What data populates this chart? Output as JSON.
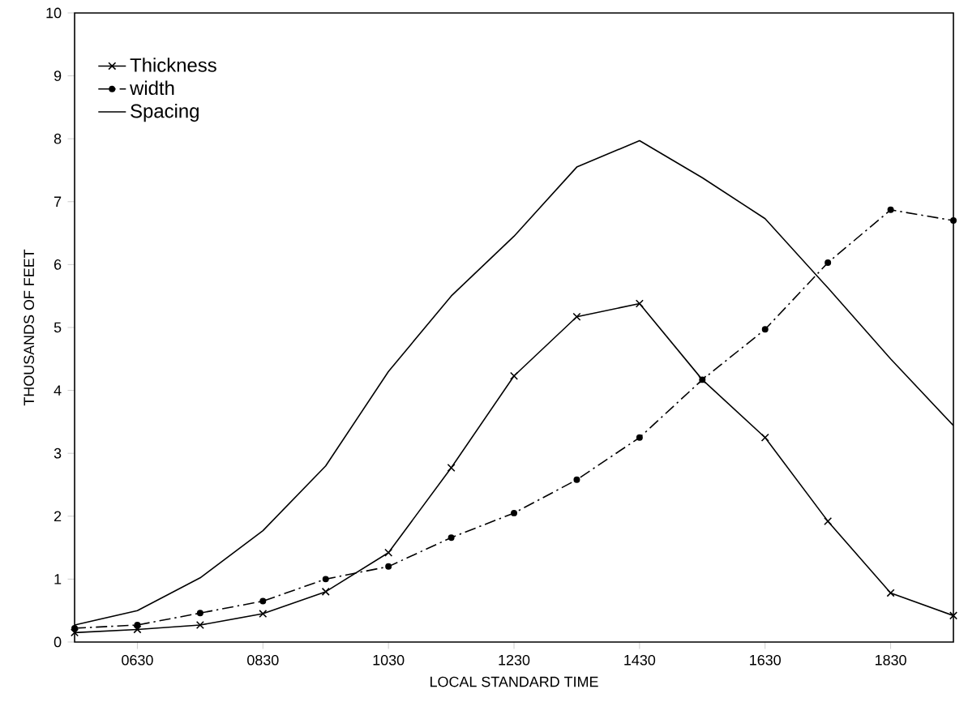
{
  "chart_data": {
    "type": "line",
    "xlabel": "LOCAL STANDARD TIME",
    "ylabel": "THOUSANDS OF FEET",
    "categories": [
      null,
      "0630",
      null,
      "0830",
      null,
      "1030",
      null,
      "1230",
      null,
      "1430",
      null,
      "1630",
      null,
      "1830",
      null
    ],
    "series": [
      {
        "name": "Thickness",
        "color": "#000000",
        "marker": "cross",
        "line_style": "solid",
        "values": [
          0.15,
          0.2,
          0.27,
          0.45,
          0.8,
          1.42,
          2.77,
          4.23,
          5.17,
          5.38,
          4.17,
          3.25,
          1.92,
          0.78,
          0.42
        ]
      },
      {
        "name": "width",
        "color": "#000000",
        "marker": "circle",
        "line_style": "dashdot",
        "values": [
          0.22,
          0.27,
          0.46,
          0.65,
          1.0,
          1.2,
          1.66,
          2.05,
          2.58,
          3.25,
          4.17,
          4.97,
          6.03,
          6.87,
          6.7
        ]
      },
      {
        "name": "Spacing",
        "color": "#000000",
        "marker": "none",
        "line_style": "solid",
        "values": [
          0.27,
          0.5,
          1.02,
          1.77,
          2.8,
          4.3,
          5.5,
          6.45,
          7.55,
          7.97,
          7.38,
          6.73,
          5.63,
          4.5,
          3.44
        ]
      }
    ],
    "ylim": [
      0,
      10
    ],
    "yticks": [
      0,
      1,
      2,
      3,
      4,
      5,
      6,
      7,
      8,
      9,
      10
    ],
    "legend": "top left",
    "grid": false
  }
}
